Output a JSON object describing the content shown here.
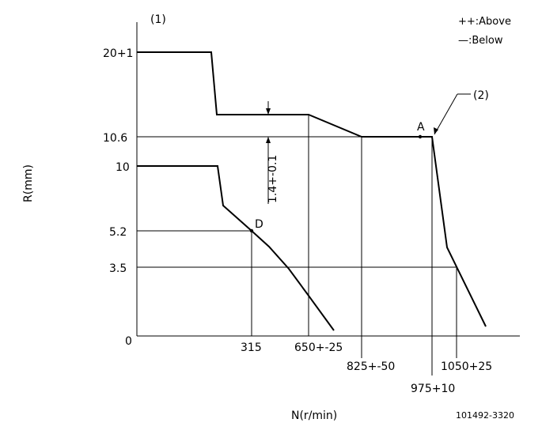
{
  "legend": {
    "above": "++:Above",
    "below": "—:Below"
  },
  "markers": {
    "one": "(1)",
    "two": "(2)"
  },
  "axes": {
    "y_label": "R(mm)",
    "x_label": "N(r/min)"
  },
  "y_ticks": [
    "20+1",
    "10.6",
    "10",
    "5.2",
    "3.5",
    "0"
  ],
  "x_ticks": [
    "315",
    "650+-25",
    "825+-50",
    "975+10",
    "1050+25"
  ],
  "points": {
    "a": "A",
    "d": "D"
  },
  "dimension": "1.4+-0.1",
  "part_number": "101492-3320"
}
